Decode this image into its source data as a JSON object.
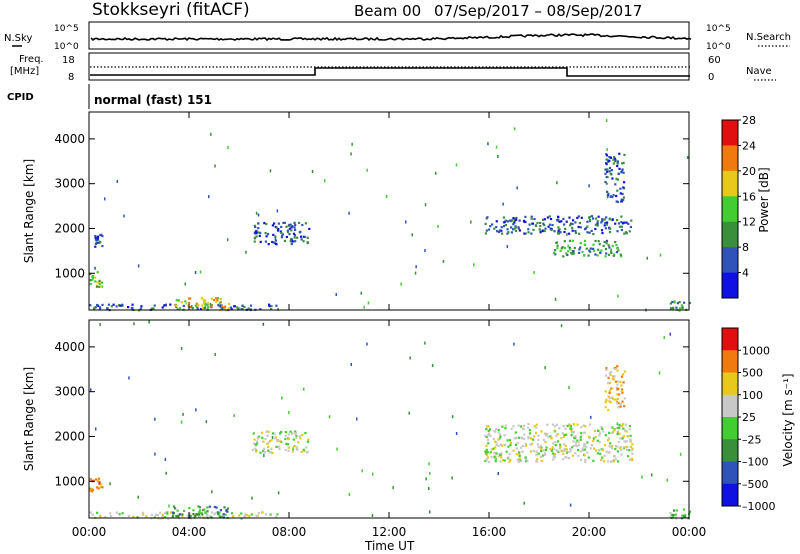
{
  "header": {
    "station": "Stokkseyri (fitACF)",
    "beam": "Beam 00",
    "date_range": "07/Sep/2017 – 08/Sep/2017"
  },
  "strips": {
    "nsky": {
      "label": "N.Sky",
      "ticks": [
        "10^5",
        "10^0"
      ],
      "right_label": "N.Search"
    },
    "freq": {
      "label_line1": "Freq.",
      "label_line2": "[MHz]",
      "ticks_left": [
        "18",
        "8"
      ],
      "ticks_right": [
        "60",
        "0"
      ],
      "right_label": "Nave"
    },
    "cpid": {
      "label": "CPID",
      "value": "normal (fast) 151"
    }
  },
  "time_axis": {
    "label": "Time UT",
    "ticks": [
      "00:00",
      "04:00",
      "08:00",
      "12:00",
      "16:00",
      "20:00",
      "00:00"
    ]
  },
  "chart_data": [
    {
      "type": "heatmap",
      "panel": "power",
      "ylabel": "Slant Range [km]",
      "x_range_hours": [
        0,
        24
      ],
      "ylim": [
        180,
        4600
      ],
      "y_ticks": [
        "1000",
        "2000",
        "3000",
        "4000"
      ],
      "colorbar": {
        "label": "Power [dB]",
        "ticks": [
          "4",
          "8",
          "12",
          "16",
          "20",
          "24",
          "28"
        ],
        "colors": [
          "#1010e0",
          "#2f53b8",
          "#3a8f3a",
          "#44cc33",
          "#e8c81a",
          "#ee7a10",
          "#e01010"
        ]
      },
      "regions": [
        {
          "t0": 0.0,
          "t1": 7.5,
          "r0": 190,
          "r1": 330,
          "level": 1
        },
        {
          "t0": 3.3,
          "t1": 5.6,
          "r0": 200,
          "r1": 470,
          "level": 4
        },
        {
          "t0": 0.0,
          "t1": 0.5,
          "r0": 700,
          "r1": 1050,
          "level": 3
        },
        {
          "t0": 0.2,
          "t1": 0.5,
          "r0": 1600,
          "r1": 1900,
          "level": 1
        },
        {
          "t0": 6.5,
          "t1": 8.8,
          "r0": 1650,
          "r1": 2150,
          "level": 1
        },
        {
          "t0": 15.8,
          "t1": 21.7,
          "r0": 1900,
          "r1": 2300,
          "level": 1
        },
        {
          "t0": 18.5,
          "t1": 21.3,
          "r0": 1400,
          "r1": 1750,
          "level": 2
        },
        {
          "t0": 20.6,
          "t1": 21.4,
          "r0": 2600,
          "r1": 3700,
          "level": 1
        },
        {
          "t0": 23.2,
          "t1": 24.0,
          "r0": 190,
          "r1": 400,
          "level": 2
        }
      ]
    },
    {
      "type": "heatmap",
      "panel": "velocity",
      "ylabel": "Slant Range [km]",
      "x_range_hours": [
        0,
        24
      ],
      "ylim": [
        180,
        4600
      ],
      "y_ticks": [
        "1000",
        "2000",
        "3000",
        "4000"
      ],
      "colorbar": {
        "label": "Velocity [m s⁻¹]",
        "ticks": [
          "1000",
          "500",
          "100",
          "25",
          "–25",
          "–100",
          "–500",
          "–1000"
        ],
        "colors": [
          "#1010e0",
          "#2f53b8",
          "#3a8f3a",
          "#44cc33",
          "#c8c8c8",
          "#e8c81a",
          "#ee7a10",
          "#e01010"
        ]
      },
      "regions": [
        {
          "t0": 0.0,
          "t1": 7.5,
          "r0": 190,
          "r1": 330,
          "level": 4
        },
        {
          "t0": 3.3,
          "t1": 5.6,
          "r0": 200,
          "r1": 470,
          "level": 2
        },
        {
          "t0": 0.0,
          "t1": 0.5,
          "r0": 800,
          "r1": 1100,
          "level": 6
        },
        {
          "t0": 6.5,
          "t1": 8.8,
          "r0": 1650,
          "r1": 2150,
          "level": 4
        },
        {
          "t0": 15.8,
          "t1": 21.7,
          "r0": 1450,
          "r1": 2300,
          "level": 4
        },
        {
          "t0": 20.6,
          "t1": 21.4,
          "r0": 2600,
          "r1": 3600,
          "level": 5
        },
        {
          "t0": 23.2,
          "t1": 24.0,
          "r0": 190,
          "r1": 400,
          "level": 3
        }
      ]
    }
  ]
}
